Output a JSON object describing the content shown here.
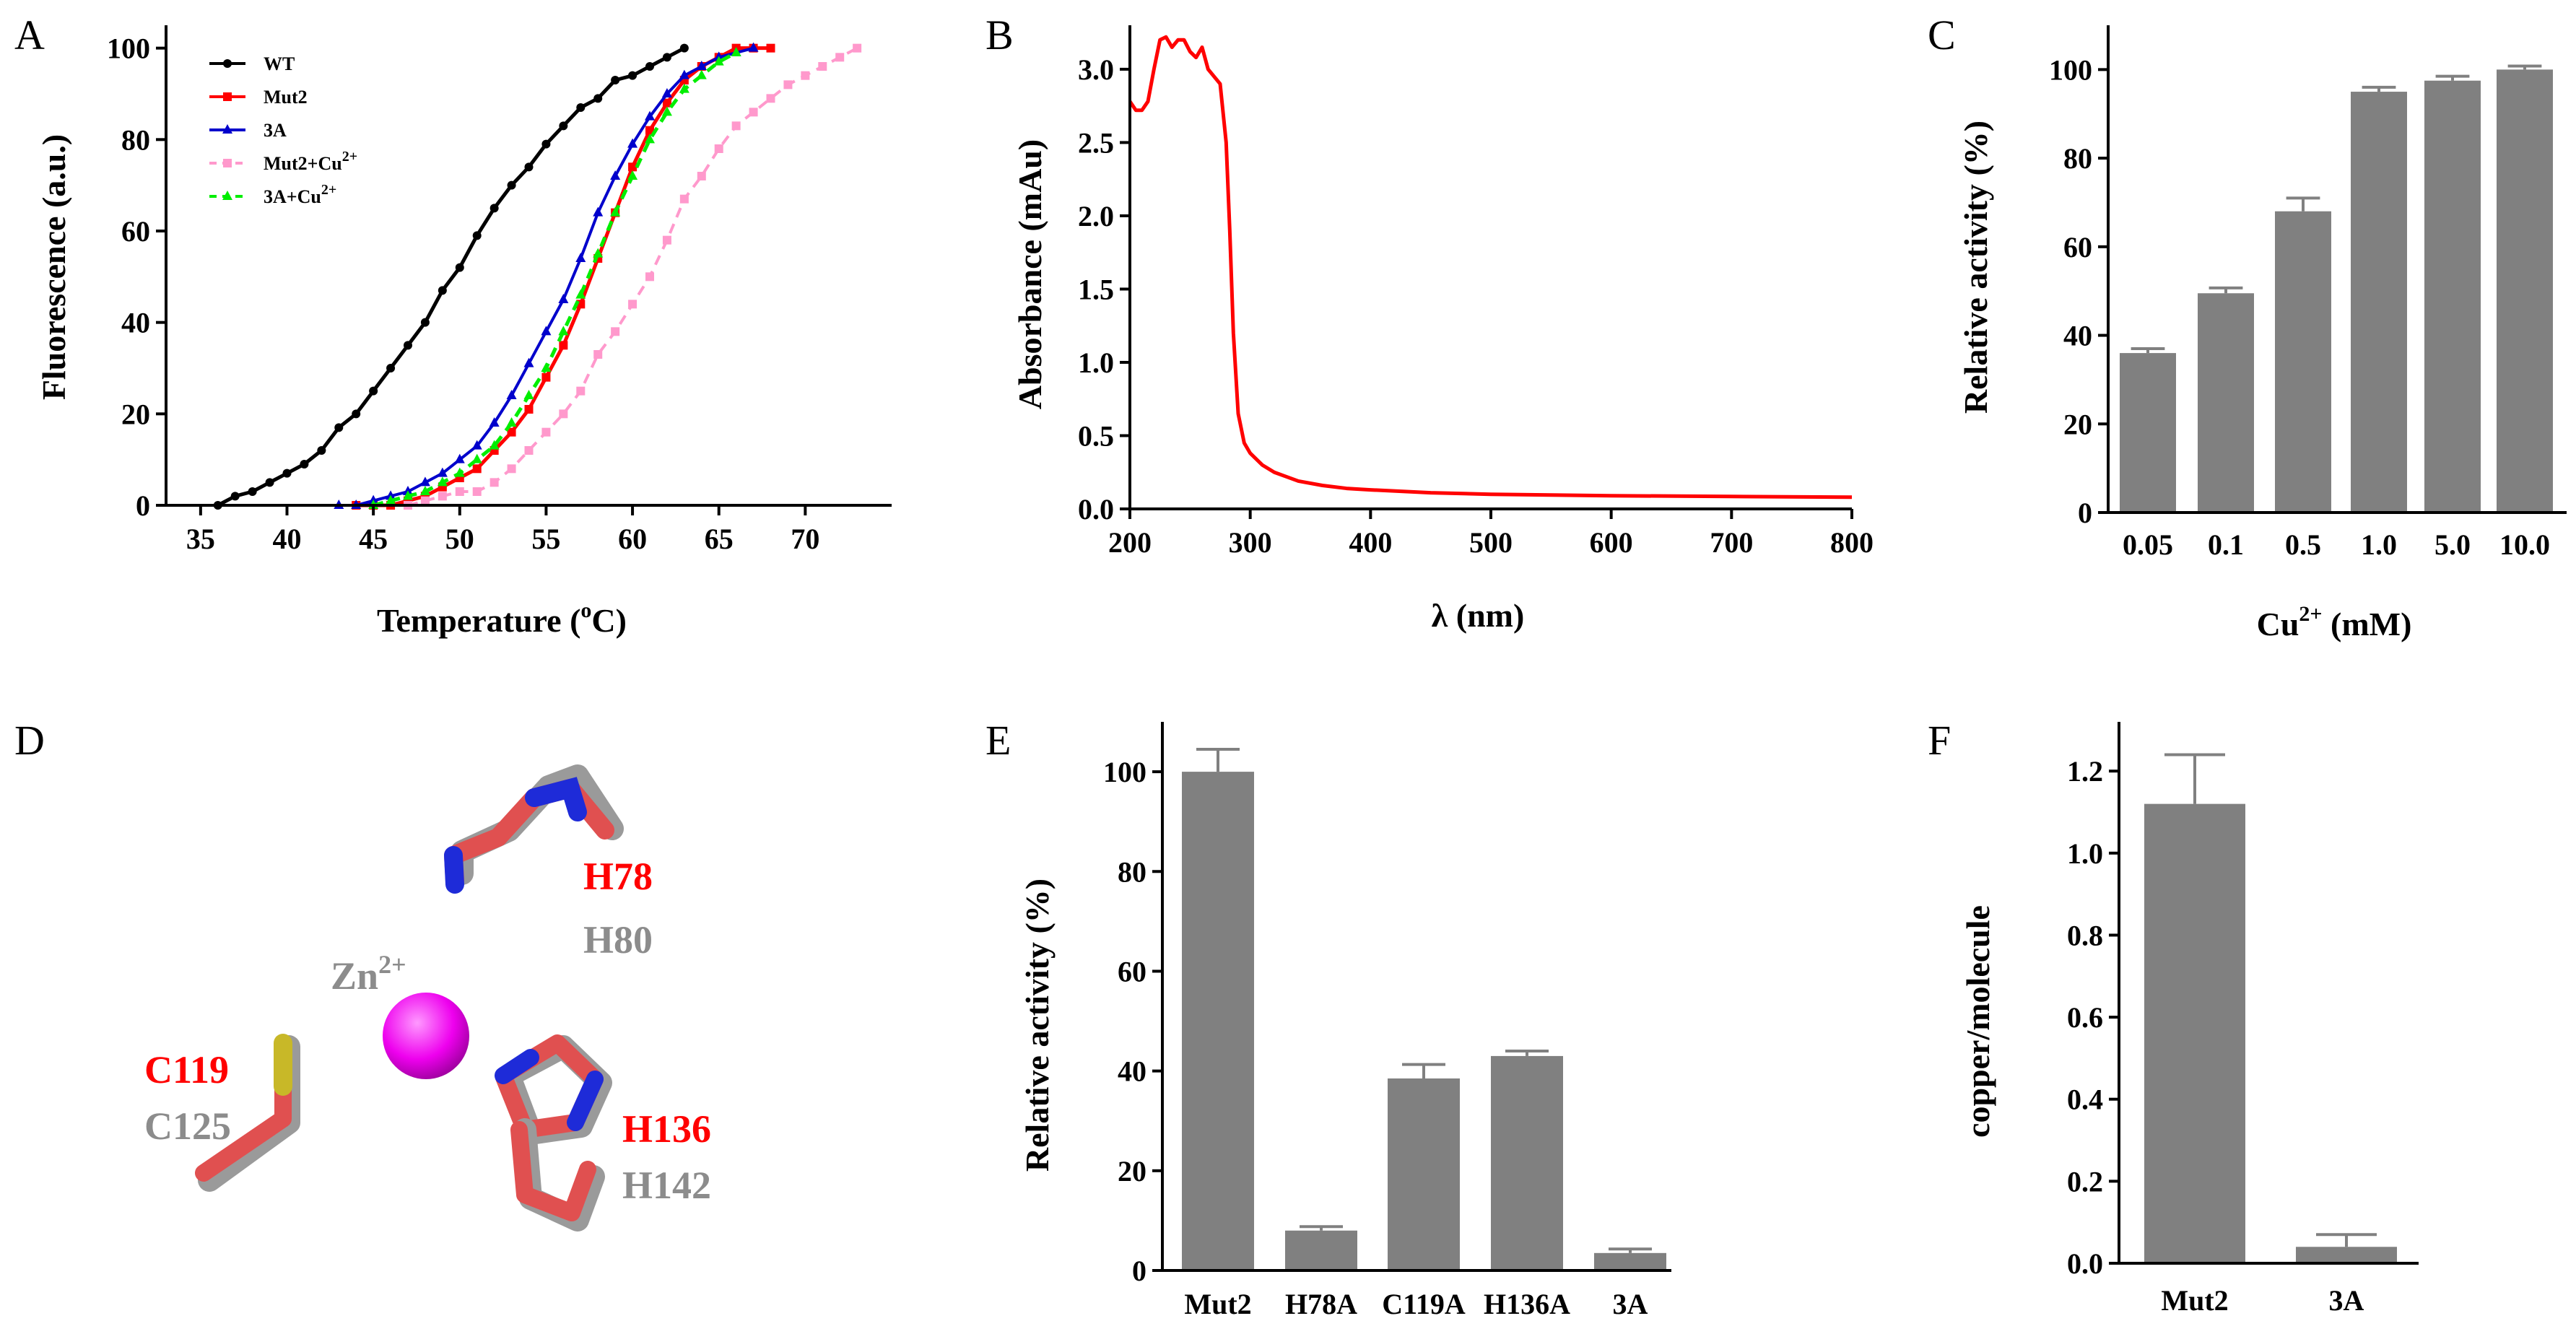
{
  "panels": {
    "A": "A",
    "B": "B",
    "C": "C",
    "D": "D",
    "E": "E",
    "F": "F"
  },
  "colors": {
    "wt": "#000000",
    "mut2": "#ff0000",
    "a3": "#0000cc",
    "mut2_cu": "#ff99cc",
    "a3_cu": "#00ee00",
    "absorbance": "#ff0000",
    "bar": "#808080",
    "red_label": "#ff0000",
    "gray_label": "#8c8c8c",
    "zn": "#ee00ee"
  },
  "chart_data": [
    {
      "panel": "A",
      "type": "line",
      "xlabel_main": "Temperature (",
      "xlabel_sup": "o",
      "xlabel_end": "C)",
      "ylabel": "Fluorescence (a.u.)",
      "xlim": [
        33,
        75
      ],
      "ylim": [
        0,
        105
      ],
      "xticks": [
        35,
        40,
        45,
        50,
        55,
        60,
        65,
        70
      ],
      "yticks": [
        0,
        20,
        40,
        60,
        80,
        100
      ],
      "legend_position": "top-left",
      "series": [
        {
          "name": "WT",
          "sup": "",
          "style": "solid-circle",
          "x": [
            36,
            37,
            38,
            39,
            40,
            41,
            42,
            43,
            44,
            45,
            46,
            47,
            48,
            49,
            50,
            51,
            52,
            53,
            54,
            55,
            56,
            57,
            58,
            59,
            60,
            61,
            62,
            63
          ],
          "y": [
            0,
            2,
            3,
            5,
            7,
            9,
            12,
            17,
            20,
            25,
            30,
            35,
            40,
            47,
            52,
            59,
            65,
            70,
            74,
            79,
            83,
            87,
            89,
            93,
            94,
            96,
            98,
            100
          ]
        },
        {
          "name": "Mut2",
          "sup": "",
          "style": "solid-square",
          "x": [
            44,
            45,
            46,
            47,
            48,
            49,
            50,
            51,
            52,
            53,
            54,
            55,
            56,
            57,
            58,
            59,
            60,
            61,
            62,
            63,
            64,
            65,
            66,
            67,
            68
          ],
          "y": [
            0,
            0,
            0,
            1,
            2,
            4,
            6,
            8,
            12,
            16,
            21,
            28,
            35,
            44,
            54,
            64,
            74,
            82,
            88,
            93,
            96,
            98,
            100,
            100,
            100
          ]
        },
        {
          "name": "3A",
          "sup": "",
          "style": "solid-triangle",
          "x": [
            43,
            44,
            45,
            46,
            47,
            48,
            49,
            50,
            51,
            52,
            53,
            54,
            55,
            56,
            57,
            58,
            59,
            60,
            61,
            62,
            63,
            64,
            65,
            66,
            67
          ],
          "y": [
            0,
            0,
            1,
            2,
            3,
            5,
            7,
            10,
            13,
            18,
            24,
            31,
            38,
            45,
            54,
            64,
            72,
            79,
            85,
            90,
            94,
            96,
            98,
            99,
            100
          ]
        },
        {
          "name": "Mut2+Cu",
          "sup": "2+",
          "style": "dashed-square",
          "x": [
            47,
            48,
            49,
            50,
            51,
            52,
            53,
            54,
            55,
            56,
            57,
            58,
            59,
            60,
            61,
            62,
            63,
            64,
            65,
            66,
            67,
            68,
            69,
            70,
            71,
            72,
            73
          ],
          "y": [
            0,
            1,
            2,
            3,
            3,
            5,
            8,
            12,
            16,
            20,
            25,
            33,
            38,
            44,
            50,
            58,
            67,
            72,
            78,
            83,
            86,
            89,
            92,
            94,
            96,
            98,
            100
          ]
        },
        {
          "name": "3A+Cu",
          "sup": "2+",
          "style": "dashed-triangle",
          "x": [
            45,
            46,
            47,
            48,
            49,
            50,
            51,
            52,
            53,
            54,
            55,
            56,
            57,
            58,
            59,
            60,
            61,
            62,
            63,
            64,
            65,
            66
          ],
          "y": [
            0,
            1,
            2,
            3,
            5,
            7,
            10,
            13,
            18,
            24,
            30,
            38,
            46,
            55,
            64,
            72,
            80,
            86,
            91,
            94,
            97,
            99
          ]
        }
      ]
    },
    {
      "panel": "B",
      "type": "line",
      "xlabel": "λ (nm)",
      "ylabel": "Absorbance (mAu)",
      "xlim": [
        200,
        800
      ],
      "ylim": [
        0,
        3.3
      ],
      "xticks": [
        200,
        300,
        400,
        500,
        600,
        700,
        800
      ],
      "yticks": [
        "0.0",
        "0.5",
        "1.0",
        "1.5",
        "2.0",
        "2.5",
        "3.0"
      ],
      "series": [
        {
          "name": "",
          "x": [
            200,
            205,
            210,
            215,
            220,
            225,
            230,
            235,
            240,
            245,
            250,
            255,
            260,
            265,
            270,
            275,
            280,
            283,
            286,
            290,
            295,
            300,
            310,
            320,
            340,
            360,
            380,
            400,
            450,
            500,
            550,
            600,
            700,
            800
          ],
          "y": [
            2.78,
            2.72,
            2.72,
            2.78,
            3.0,
            3.2,
            3.22,
            3.15,
            3.2,
            3.2,
            3.12,
            3.08,
            3.15,
            3.0,
            2.95,
            2.9,
            2.5,
            1.9,
            1.2,
            0.65,
            0.45,
            0.38,
            0.3,
            0.25,
            0.19,
            0.16,
            0.14,
            0.13,
            0.11,
            0.1,
            0.095,
            0.09,
            0.085,
            0.08
          ]
        }
      ]
    },
    {
      "panel": "C",
      "type": "bar",
      "xlabel_main": "Cu",
      "xlabel_sup": "2+",
      "xlabel_end": " (mM)",
      "ylabel": "Relative activity (%)",
      "ylim": [
        0,
        110
      ],
      "yticks": [
        0,
        20,
        40,
        60,
        80,
        100
      ],
      "categories": [
        "0.05",
        "0.1",
        "0.5",
        "1.0",
        "5.0",
        "10.0"
      ],
      "values": [
        36,
        49.5,
        68,
        95,
        97.5,
        100
      ],
      "errors": [
        1,
        1.2,
        3,
        1,
        1,
        0.8
      ]
    },
    {
      "panel": "E",
      "type": "bar",
      "xlabel": "",
      "ylabel": "Relative activity (%)",
      "ylim": [
        0,
        110
      ],
      "yticks": [
        0,
        20,
        40,
        60,
        80,
        100
      ],
      "categories": [
        "Mut2",
        "H78A",
        "C119A",
        "H136A",
        "3A"
      ],
      "values": [
        100,
        8,
        38.5,
        43,
        3.5
      ],
      "errors": [
        4.5,
        0.8,
        2.8,
        1,
        0.8
      ]
    },
    {
      "panel": "F",
      "type": "bar",
      "xlabel": "",
      "ylabel": "copper/molecule",
      "ylim": [
        0,
        1.32
      ],
      "yticks": [
        "0.0",
        "0.2",
        "0.4",
        "0.6",
        "0.8",
        "1.0",
        "1.2"
      ],
      "categories": [
        "Mut2",
        "3A"
      ],
      "values": [
        1.12,
        0.04
      ],
      "errors": [
        0.12,
        0.03
      ]
    }
  ],
  "structure": {
    "h78": "H78",
    "h80": "H80",
    "zn_main": "Zn",
    "zn_sup": "2+",
    "c119": "C119",
    "c125": "C125",
    "h136": "H136",
    "h142": "H142"
  }
}
